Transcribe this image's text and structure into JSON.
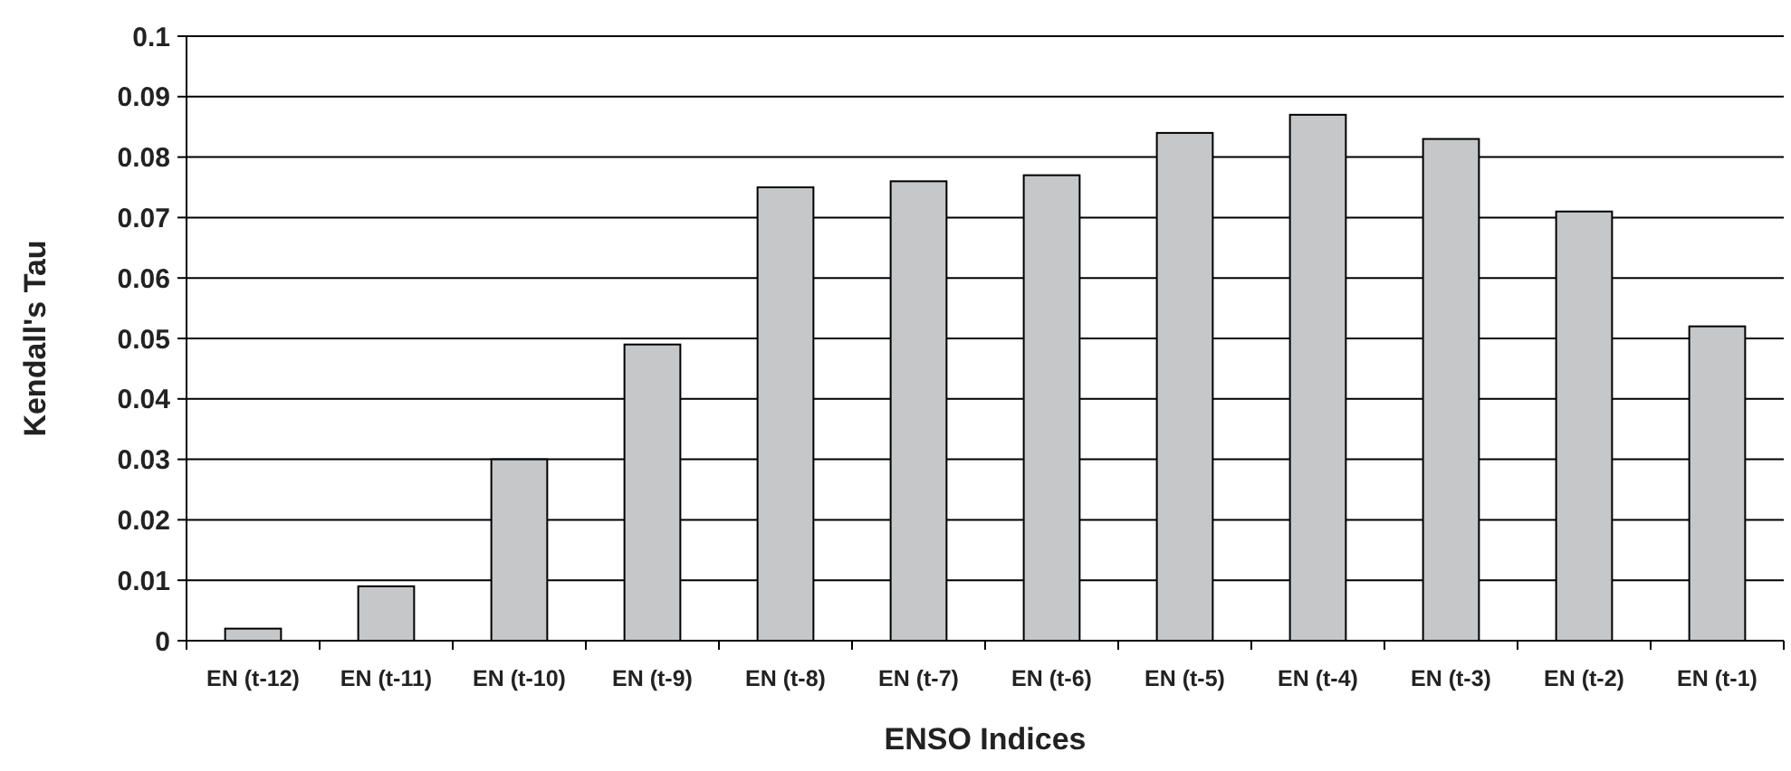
{
  "chart_data": {
    "type": "bar",
    "xlabel": "ENSO Indices",
    "ylabel": "Kendall's Tau",
    "categories": [
      "EN (t-12)",
      "EN (t-11)",
      "EN (t-10)",
      "EN (t-9)",
      "EN (t-8)",
      "EN (t-7)",
      "EN (t-6)",
      "EN (t-5)",
      "EN (t-4)",
      "EN (t-3)",
      "EN (t-2)",
      "EN (t-1)"
    ],
    "values": [
      0.002,
      0.009,
      0.03,
      0.049,
      0.075,
      0.076,
      0.077,
      0.084,
      0.087,
      0.083,
      0.071,
      0.052
    ],
    "color": "#c6c7c9",
    "ylim": [
      0,
      0.1
    ],
    "yticks": [
      0,
      0.01,
      0.02,
      0.03,
      0.04,
      0.05,
      0.06,
      0.07,
      0.08,
      0.09,
      0.1
    ],
    "grid": "y"
  }
}
